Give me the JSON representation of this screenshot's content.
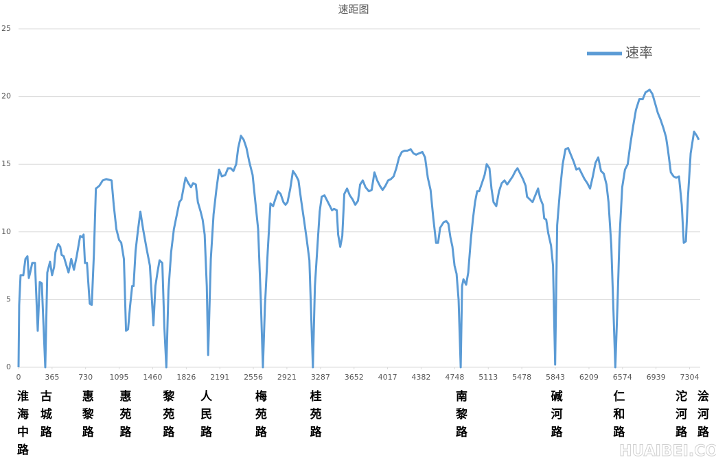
{
  "chart_data": {
    "type": "line",
    "title": "速距图",
    "xlim": [
      0,
      7420
    ],
    "xticks": [
      0,
      365,
      730,
      1095,
      1460,
      1826,
      2191,
      2556,
      2921,
      3287,
      3652,
      4017,
      4382,
      4748,
      5113,
      5478,
      5843,
      6209,
      6574,
      6939,
      7304
    ],
    "ylim": [
      0,
      25
    ],
    "yticks": [
      0,
      5,
      10,
      15,
      20,
      25
    ],
    "grid": true,
    "legend": "top-right",
    "x": [
      0,
      7,
      22,
      52,
      75,
      97,
      112,
      127,
      149,
      179,
      209,
      231,
      253,
      291,
      313,
      343,
      365,
      387,
      402,
      432,
      454,
      469,
      492,
      522,
      544,
      574,
      603,
      633,
      671,
      693,
      708,
      723,
      745,
      775,
      797,
      820,
      842,
      879,
      916,
      954,
      1013,
      1036,
      1065,
      1095,
      1118,
      1147,
      1170,
      1192,
      1214,
      1237,
      1252,
      1274,
      1296,
      1326,
      1356,
      1393,
      1430,
      1468,
      1490,
      1512,
      1535,
      1565,
      1587,
      1609,
      1632,
      1661,
      1691,
      1721,
      1751,
      1773,
      1803,
      1818,
      1848,
      1877,
      1900,
      1930,
      1952,
      1982,
      2004,
      2026,
      2049,
      2064,
      2093,
      2123,
      2153,
      2183,
      2213,
      2250,
      2280,
      2310,
      2339,
      2369,
      2391,
      2421,
      2451,
      2481,
      2511,
      2548,
      2578,
      2608,
      2637,
      2660,
      2682,
      2712,
      2742,
      2771,
      2794,
      2824,
      2853,
      2883,
      2906,
      2928,
      2958,
      2987,
      3017,
      3047,
      3077,
      3107,
      3136,
      3166,
      3204,
      3226,
      3256,
      3278,
      3300,
      3330,
      3360,
      3390,
      3412,
      3434,
      3464,
      3479,
      3502,
      3524,
      3546,
      3576,
      3606,
      3636,
      3665,
      3695,
      3718,
      3747,
      3777,
      3814,
      3844,
      3874,
      3904,
      3934,
      3963,
      3993,
      4023,
      4053,
      4083,
      4112,
      4142,
      4172,
      4202,
      4232,
      4269,
      4299,
      4328,
      4358,
      4396,
      4425,
      4455,
      4485,
      4515,
      4545,
      4567,
      4589,
      4626,
      4656,
      4679,
      4701,
      4723,
      4746,
      4768,
      4790,
      4813,
      4828,
      4843,
      4872,
      4895,
      4924,
      4947,
      4969,
      4992,
      5014,
      5044,
      5073,
      5096,
      5126,
      5148,
      5170,
      5200,
      5230,
      5260,
      5290,
      5319,
      5349,
      5379,
      5409,
      5431,
      5461,
      5491,
      5520,
      5535,
      5565,
      5595,
      5625,
      5655,
      5677,
      5707,
      5722,
      5744,
      5766,
      5796,
      5818,
      5841,
      5863,
      5893,
      5923,
      5953,
      5982,
      6012,
      6042,
      6072,
      6102,
      6131,
      6161,
      6191,
      6221,
      6251,
      6280,
      6310,
      6340,
      6370,
      6400,
      6422,
      6452,
      6474,
      6496,
      6519,
      6541,
      6571,
      6601,
      6631,
      6660,
      6690,
      6720,
      6757,
      6794,
      6824,
      6869,
      6899,
      6929,
      6958,
      6988,
      7018,
      7048,
      7070,
      7100,
      7130,
      7159,
      7189,
      7219,
      7241,
      7264,
      7286,
      7316,
      7353,
      7383,
      7405
    ],
    "series": [
      {
        "name": "速率",
        "color": "#5b9bd5",
        "values": [
          0,
          4.6,
          6.8,
          6.8,
          8.0,
          8.2,
          6.6,
          7.0,
          7.7,
          7.7,
          2.7,
          6.3,
          6.2,
          0,
          7.0,
          7.8,
          6.8,
          7.4,
          8.5,
          9.1,
          8.9,
          8.3,
          8.2,
          7.5,
          7.0,
          8.0,
          7.2,
          8.2,
          9.7,
          9.6,
          9.8,
          7.7,
          7.7,
          4.7,
          4.6,
          8.3,
          13.2,
          13.4,
          13.8,
          13.9,
          13.8,
          12.0,
          10.2,
          9.4,
          9.2,
          8.0,
          2.7,
          2.8,
          4.5,
          6.0,
          6.0,
          8.6,
          9.9,
          11.5,
          10.2,
          8.8,
          7.5,
          3.1,
          6.0,
          7.0,
          7.9,
          7.7,
          3.0,
          0,
          5.7,
          8.5,
          10.2,
          11.2,
          12.2,
          12.4,
          13.5,
          14.0,
          13.6,
          13.3,
          13.6,
          13.5,
          12.2,
          11.5,
          10.9,
          9.8,
          6.0,
          0.9,
          8.0,
          11.3,
          13.1,
          14.6,
          14.1,
          14.2,
          14.7,
          14.7,
          14.5,
          15.0,
          16.2,
          17.1,
          16.8,
          16.2,
          15.2,
          14.2,
          12.2,
          10.2,
          5.0,
          0,
          4.5,
          8.5,
          12.1,
          11.9,
          12.4,
          13.0,
          12.8,
          12.2,
          12.0,
          12.2,
          13.2,
          14.5,
          14.2,
          13.8,
          12.3,
          10.9,
          9.5,
          7.9,
          0,
          6.0,
          9.2,
          11.5,
          12.6,
          12.7,
          12.3,
          11.9,
          11.6,
          11.7,
          11.6,
          9.8,
          8.9,
          9.7,
          12.8,
          13.2,
          12.7,
          12.4,
          12.0,
          12.3,
          13.5,
          13.8,
          13.3,
          13.0,
          13.1,
          14.4,
          13.8,
          13.4,
          13.1,
          13.4,
          13.8,
          13.9,
          14.1,
          14.7,
          15.5,
          15.9,
          16.0,
          16.0,
          16.1,
          15.8,
          15.7,
          15.8,
          15.9,
          15.5,
          14.0,
          13.1,
          11.0,
          9.2,
          9.2,
          10.3,
          10.7,
          10.8,
          10.6,
          9.6,
          8.9,
          7.5,
          6.9,
          5.0,
          0,
          6.0,
          6.5,
          6.1,
          7.0,
          9.5,
          11.0,
          12.2,
          13.0,
          13.0,
          13.6,
          14.2,
          15.0,
          14.7,
          13.2,
          12.2,
          11.9,
          13.0,
          13.6,
          13.8,
          13.5,
          13.8,
          14.1,
          14.5,
          14.7,
          14.3,
          13.9,
          13.4,
          12.6,
          12.4,
          12.2,
          12.7,
          13.2,
          12.5,
          12.0,
          11.0,
          10.9,
          9.9,
          9.0,
          7.5,
          0.2,
          10.5,
          13.0,
          15.0,
          16.1,
          16.2,
          15.7,
          15.2,
          14.6,
          14.7,
          14.3,
          13.9,
          13.6,
          13.2,
          14.1,
          15.1,
          15.5,
          14.5,
          14.3,
          13.5,
          12.2,
          9.0,
          4.5,
          0,
          4.5,
          9.5,
          13.3,
          14.6,
          15.0,
          16.5,
          17.8,
          19.0,
          19.8,
          19.8,
          20.3,
          20.5,
          20.2,
          19.5,
          18.8,
          18.3,
          17.7,
          17.0,
          16.0,
          14.4,
          14.1,
          14.0,
          14.1,
          12.0,
          9.2,
          9.3,
          12.5,
          15.8,
          17.4,
          17.1,
          16.8
        ]
      }
    ],
    "stations": [
      {
        "label": "淮海中路",
        "x": 30
      },
      {
        "label": "古城路",
        "x": 283
      },
      {
        "label": "惠黎路",
        "x": 738
      },
      {
        "label": "惠苑路",
        "x": 1147
      },
      {
        "label": "黎苑路",
        "x": 1617
      },
      {
        "label": "人民路",
        "x": 2026
      },
      {
        "label": "梅苑路",
        "x": 2622
      },
      {
        "label": "桂苑路",
        "x": 3218
      },
      {
        "label": "南黎路",
        "x": 4805
      },
      {
        "label": "碱河路",
        "x": 5841
      },
      {
        "label": "仁和路",
        "x": 6519
      },
      {
        "label": "沱河路",
        "x": 7197
      },
      {
        "label": "浍河路",
        "x": 7435
      }
    ]
  },
  "watermark": "HUAIBEI.COM"
}
